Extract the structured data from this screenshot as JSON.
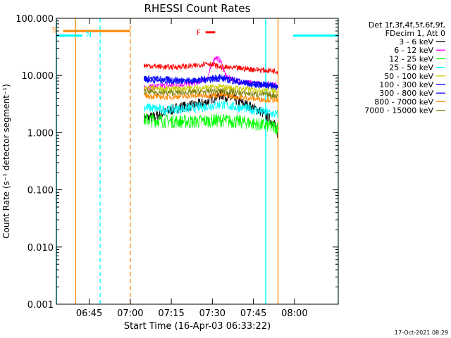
{
  "chart_data": {
    "type": "line",
    "title": "RHESSI Count Rates",
    "xlabel": "Start Time (16-Apr-03 06:33:22)",
    "ylabel": "Count Rate (s⁻¹ detector segment⁻¹)",
    "y_scale": "log",
    "ylim": [
      0.001,
      100
    ],
    "xlim_minutes_after_0633": [
      0,
      103
    ],
    "x_tick_labels": [
      "06:45",
      "07:00",
      "07:15",
      "07:30",
      "07:45",
      "08:00"
    ],
    "x_tick_minutes_after_0633": [
      12,
      27,
      42,
      57,
      72,
      87
    ],
    "y_tick_labels": [
      "0.001",
      "0.010",
      "0.100",
      "1.000",
      "10.000",
      "100.000"
    ],
    "y_tick_values": [
      0.001,
      0.01,
      0.1,
      1,
      10,
      100
    ],
    "grid": false,
    "legend_header": [
      "Det 1f,3f,4f,5f,6f,9f,",
      "FDecim 1, Att 0"
    ],
    "legend_placement": "right",
    "series": [
      {
        "name": "3 - 6 keV",
        "color": "#000000",
        "x": [
          32,
          36,
          40,
          45,
          50,
          55,
          57,
          60,
          62,
          65,
          70,
          75,
          80,
          81
        ],
        "y": [
          1.8,
          1.9,
          2.3,
          2.8,
          3.0,
          3.4,
          4.0,
          4.6,
          4.3,
          3.8,
          3.0,
          2.3,
          1.4,
          0.7
        ]
      },
      {
        "name": "6 - 12 keV",
        "color": "#ff00ff",
        "x": [
          32,
          40,
          50,
          55,
          58,
          60,
          62,
          66,
          70,
          80,
          81
        ],
        "y": [
          6.3,
          6.6,
          7.2,
          8.8,
          21,
          18,
          9.5,
          8.0,
          7.4,
          6.9,
          6.8
        ]
      },
      {
        "name": "12 - 25 keV",
        "color": "#00ff00",
        "x": [
          32,
          40,
          50,
          60,
          70,
          80,
          81
        ],
        "y": [
          1.7,
          1.6,
          1.55,
          1.65,
          1.5,
          1.25,
          1.2
        ]
      },
      {
        "name": "25 - 50 keV",
        "color": "#00ffff",
        "x": [
          32,
          40,
          50,
          60,
          70,
          80,
          81
        ],
        "y": [
          2.8,
          2.5,
          2.7,
          3.1,
          2.6,
          2.1,
          2.0
        ]
      },
      {
        "name": "50 - 100 keV",
        "color": "#cccc00",
        "x": [
          32,
          40,
          50,
          60,
          70,
          80,
          81
        ],
        "y": [
          6.0,
          5.8,
          6.0,
          6.3,
          5.7,
          5.5,
          5.4
        ]
      },
      {
        "name": "100 - 300 keV",
        "color": "#0000ff",
        "x": [
          32,
          40,
          50,
          60,
          70,
          80,
          81
        ],
        "y": [
          9.0,
          8.6,
          8.3,
          9.5,
          7.3,
          6.8,
          6.6
        ]
      },
      {
        "name": "300 - 800 keV",
        "color": "#0000ff",
        "x": [
          32,
          40,
          50,
          60,
          70,
          80,
          81
        ],
        "y": [
          8.4,
          8.0,
          7.8,
          8.8,
          7.0,
          6.4,
          6.2
        ]
      },
      {
        "name": "800 - 7000 keV",
        "color": "#ff8800",
        "x": [
          32,
          40,
          50,
          60,
          70,
          80,
          81
        ],
        "y": [
          4.4,
          4.2,
          4.4,
          4.6,
          4.0,
          3.7,
          3.6
        ]
      },
      {
        "name": "7000 - 15000 keV",
        "color": "#808000",
        "x": [
          32,
          40,
          50,
          60,
          70,
          80,
          81
        ],
        "y": [
          5.2,
          5.0,
          5.1,
          5.4,
          4.8,
          4.5,
          4.4
        ]
      },
      {
        "name": "",
        "color": "#ff0000",
        "x": [
          32,
          40,
          50,
          55,
          60,
          65,
          70,
          80,
          81
        ],
        "y": [
          15,
          14,
          14.5,
          16.5,
          14,
          13.5,
          13,
          12,
          11.8
        ]
      }
    ],
    "annotations": {
      "s_marker": {
        "label": "S",
        "color": "#ff8800",
        "x_start": 2.5,
        "x_end": 27,
        "y": 60
      },
      "n_marker": {
        "label": "N",
        "color": "#00ffff",
        "segments": [
          [
            0,
            9.5
          ],
          [
            86.5,
            103
          ]
        ],
        "y": 50
      },
      "f_marker": {
        "label": "F",
        "color": "#ff0000",
        "x_start": 54.5,
        "x_end": 58,
        "y": 57
      },
      "orange_solid_vlines": [
        7,
        81
      ],
      "orange_dashed_vlines": [
        27
      ],
      "cyan_solid_vlines": [
        0,
        76.5
      ],
      "cyan_dashed_vlines": [
        16,
        103
      ]
    }
  },
  "footer_date": "17-Oct-2021 08:29"
}
